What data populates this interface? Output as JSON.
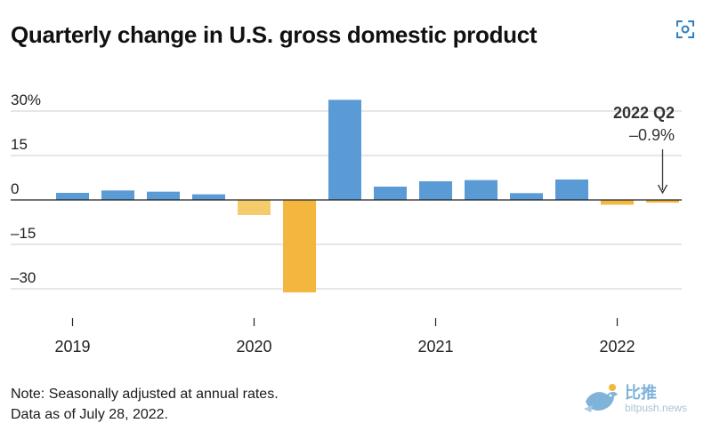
{
  "title": "Quarterly change in U.S. gross domestic product",
  "note_lines": [
    "Note: Seasonally adjusted at annual rates.",
    "Data as of July 28, 2022."
  ],
  "watermark": {
    "text": "比推",
    "url": "bitpush.news"
  },
  "colors": {
    "positive": "#5b9bd5",
    "negative": "#f3b63f",
    "negative_light": "#f5cb6b",
    "grid": "#cccccc",
    "axis": "#222222"
  },
  "chart_data": {
    "type": "bar",
    "title": "Quarterly change in U.S. gross domestic product",
    "xlabel": "",
    "ylabel": "",
    "ylim": [
      -40,
      40
    ],
    "y_ticks": [
      30,
      15,
      0,
      -15,
      -30
    ],
    "y_tick_labels": [
      "30%",
      "15",
      "0",
      "–15",
      "–30"
    ],
    "grid": true,
    "year_labels": [
      "2019",
      "2020",
      "2021",
      "2022"
    ],
    "categories": [
      "2019 Q1",
      "2019 Q2",
      "2019 Q3",
      "2019 Q4",
      "2020 Q1",
      "2020 Q2",
      "2020 Q3",
      "2020 Q4",
      "2021 Q1",
      "2021 Q2",
      "2021 Q3",
      "2021 Q4",
      "2022 Q1",
      "2022 Q2"
    ],
    "values": [
      2.4,
      3.2,
      2.8,
      1.9,
      -5.1,
      -31.2,
      33.8,
      4.5,
      6.3,
      6.7,
      2.3,
      6.9,
      -1.6,
      -0.9
    ],
    "annotation": {
      "category": "2022 Q2",
      "label": "2022 Q2",
      "value_text": "–0.9%"
    }
  }
}
